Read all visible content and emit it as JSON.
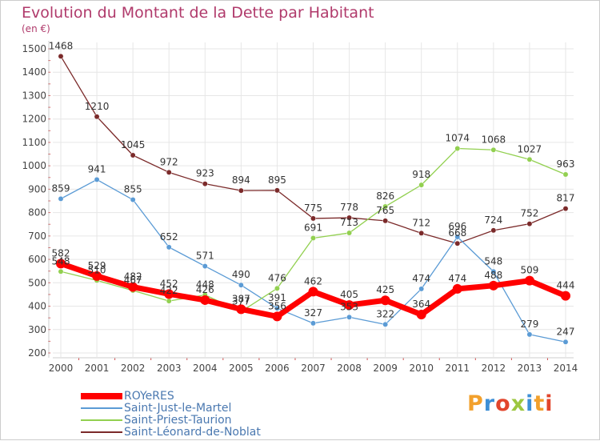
{
  "chart_data": {
    "type": "line",
    "title": "Evolution du Montant de la Dette par Habitant",
    "unit_label": "(en €)",
    "x": [
      "2000",
      "2001",
      "2002",
      "2003",
      "2004",
      "2005",
      "2006",
      "2007",
      "2008",
      "2009",
      "2010",
      "2011",
      "2012",
      "2013",
      "2014"
    ],
    "ylim": [
      200,
      1500
    ],
    "yticks": [
      200,
      300,
      400,
      500,
      600,
      700,
      800,
      900,
      1000,
      1100,
      1200,
      1300,
      1400,
      1500
    ],
    "grid": true,
    "legend_position": "bottom-left",
    "series": [
      {
        "name": "ROYeRES",
        "color": "#ff0000",
        "values": [
          582,
          529,
          482,
          452,
          426,
          387,
          356,
          462,
          405,
          425,
          364,
          474,
          488,
          509,
          444
        ]
      },
      {
        "name": "Saint-Just-le-Martel",
        "color": "#5b9bd5",
        "values": [
          859,
          941,
          855,
          652,
          571,
          490,
          391,
          327,
          353,
          322,
          474,
          696,
          548,
          279,
          247
        ]
      },
      {
        "name": "Saint-Priest-Taurion",
        "color": "#92d050",
        "values": [
          548,
          510,
          467,
          422,
          448,
          377,
          476,
          691,
          713,
          826,
          918,
          1074,
          1068,
          1027,
          963
        ]
      },
      {
        "name": "Saint-Léonard-de-Noblat",
        "color": "#7b2a2a",
        "values": [
          1468,
          1210,
          1045,
          972,
          923,
          894,
          895,
          775,
          778,
          765,
          712,
          668,
          724,
          752,
          817
        ]
      }
    ],
    "labels_shown": [
      [
        "582",
        "529",
        "482",
        "452",
        "426",
        "387",
        "356",
        "462",
        "405",
        "425",
        "364",
        "474",
        "488",
        "509",
        "444"
      ],
      [
        "859",
        "941",
        "855",
        "652",
        "571",
        "490",
        "391",
        "327",
        "353",
        "322",
        "474",
        "696",
        "548",
        "279",
        "247"
      ],
      [
        "548",
        "510",
        "467",
        "422",
        "448",
        "377",
        "476",
        "691",
        "713",
        "826",
        "918",
        "1074",
        "1068",
        "1027",
        "963"
      ],
      [
        "1468",
        "1210",
        "1045",
        "972",
        "923",
        "894",
        "895",
        "775",
        "778",
        "765",
        "712",
        "668",
        "724",
        "752",
        "817"
      ]
    ]
  },
  "logo": {
    "text": "Proxiti"
  }
}
